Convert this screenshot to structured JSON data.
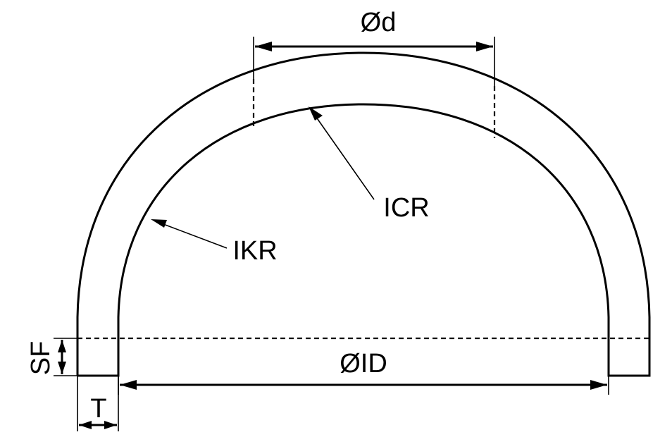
{
  "labels": {
    "d": "Ød",
    "icr": "ICR",
    "ikr": "IKR",
    "id": "ØID",
    "sf": "SF",
    "t": "T"
  }
}
